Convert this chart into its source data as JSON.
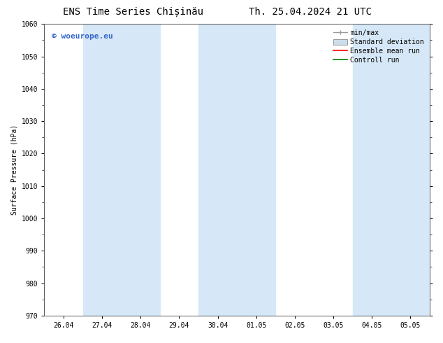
{
  "title_left": "ENS Time Series Chișinău",
  "title_right": "Th. 25.04.2024 21 UTC",
  "ylabel": "Surface Pressure (hPa)",
  "ylim": [
    970,
    1060
  ],
  "yticks": [
    970,
    980,
    990,
    1000,
    1010,
    1020,
    1030,
    1040,
    1050,
    1060
  ],
  "x_labels": [
    "26.04",
    "27.04",
    "28.04",
    "29.04",
    "30.04",
    "01.05",
    "02.05",
    "03.05",
    "04.05",
    "05.05"
  ],
  "x_values": [
    0,
    1,
    2,
    3,
    4,
    5,
    6,
    7,
    8,
    9
  ],
  "xlim": [
    -0.5,
    9.5
  ],
  "shaded_bands": [
    {
      "xmin": 0.5,
      "xmax": 2.5,
      "color": "#d6e8f7"
    },
    {
      "xmin": 3.5,
      "xmax": 5.5,
      "color": "#d6e8f7"
    },
    {
      "xmin": 7.5,
      "xmax": 9.5,
      "color": "#d6e8f7"
    }
  ],
  "legend_items": [
    {
      "label": "min/max",
      "color": "#aaaaaa",
      "style": "errorbar"
    },
    {
      "label": "Standard deviation",
      "color": "#c8d8e8",
      "style": "box"
    },
    {
      "label": "Ensemble mean run",
      "color": "red",
      "style": "line"
    },
    {
      "label": "Controll run",
      "color": "green",
      "style": "line"
    }
  ],
  "watermark_text": "© woeurope.eu",
  "watermark_color": "#3366cc",
  "bg_color": "#ffffff",
  "plot_bg_color": "#ffffff",
  "title_fontsize": 10,
  "axis_fontsize": 7,
  "tick_fontsize": 7,
  "legend_fontsize": 7
}
